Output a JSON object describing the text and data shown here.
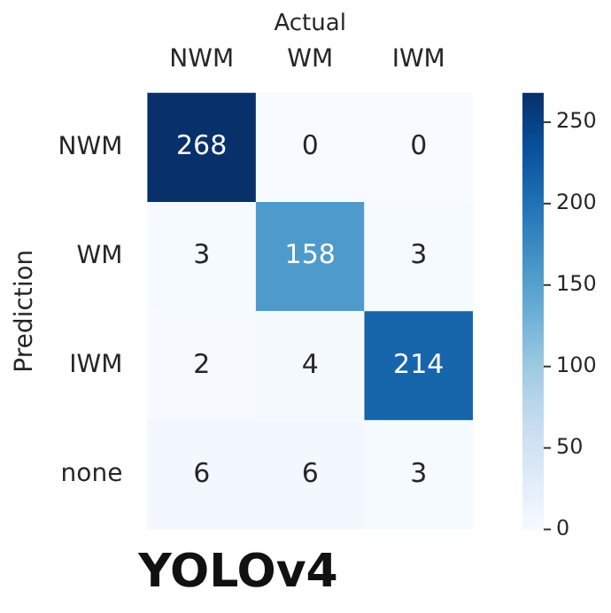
{
  "chart_data": {
    "type": "heatmap",
    "title": "YOLOv4",
    "xlabel": "Actual",
    "ylabel": "Prediction",
    "categories": [
      "NWM",
      "WM",
      "IWM"
    ],
    "y_categories": [
      "NWM",
      "WM",
      "IWM",
      "none"
    ],
    "cells": [
      [
        268,
        0,
        0
      ],
      [
        3,
        158,
        3
      ],
      [
        2,
        4,
        214
      ],
      [
        6,
        6,
        3
      ]
    ],
    "data_labels": true,
    "clim": [
      0,
      268
    ],
    "cticks": [
      0,
      50,
      100,
      150,
      200,
      250
    ]
  }
}
